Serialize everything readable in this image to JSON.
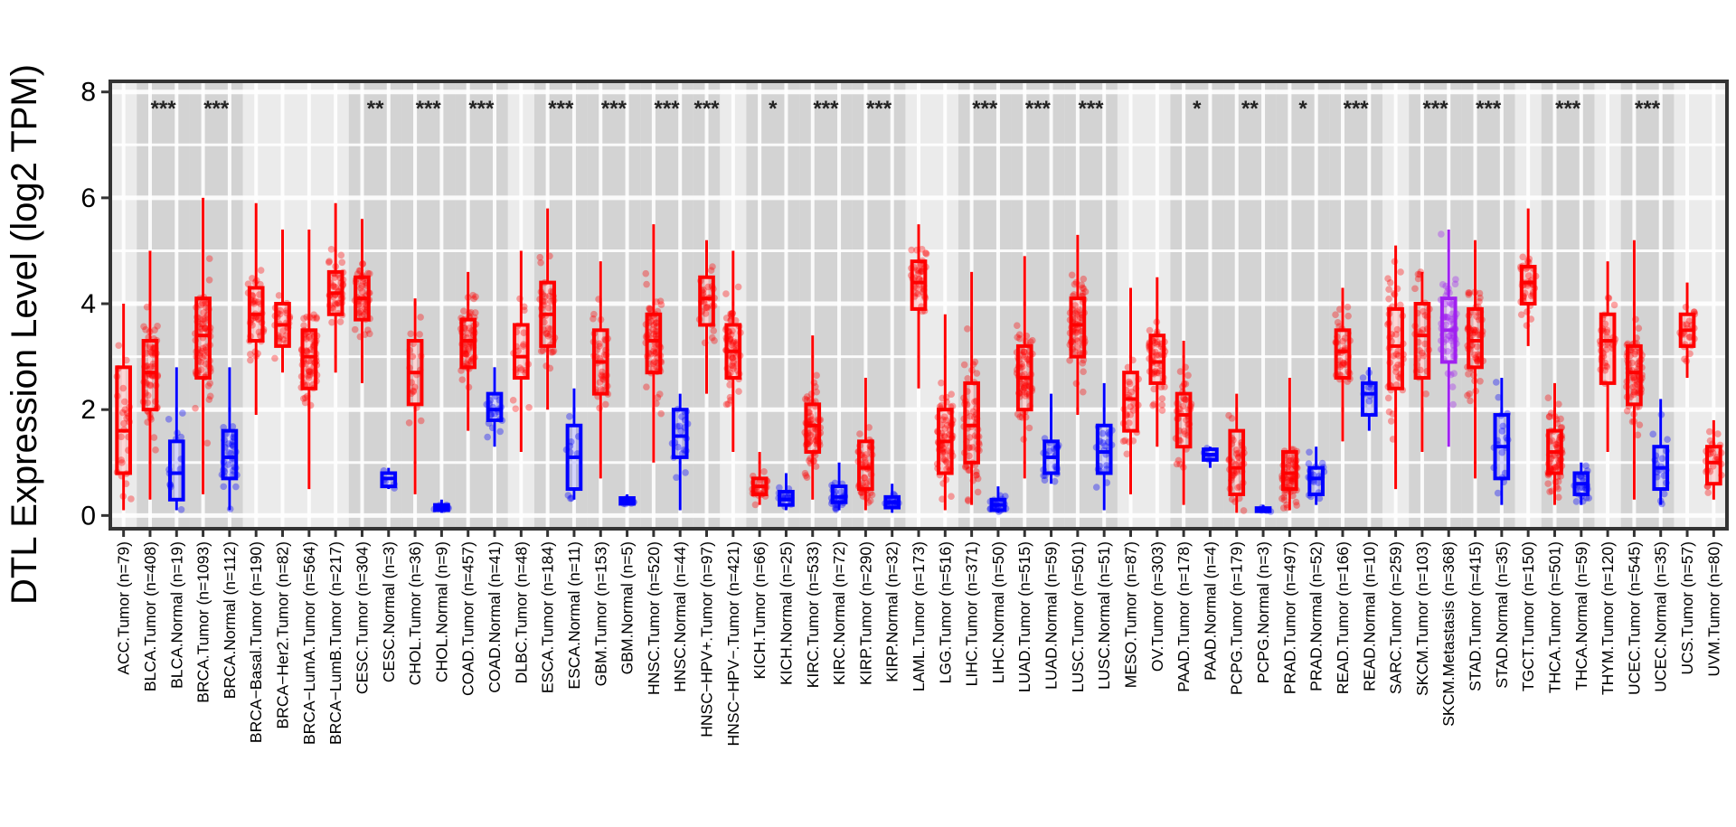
{
  "chart_data": {
    "type": "box",
    "ylabel": "DTL Expression Level (log2 TPM)",
    "xlabel": "",
    "title": "",
    "ylim": [
      -0.25,
      8.2
    ],
    "yticks": [
      0,
      2,
      4,
      6,
      8
    ],
    "grid": true,
    "colors": {
      "Tumor": "#ff0000",
      "Normal": "#0000ff",
      "Metastasis": "#a020f0",
      "shade": "#d3d3d3",
      "panel": "#ebebeb"
    },
    "categories": [
      "ACC.Tumor (n=79)",
      "BLCA.Tumor (n=408)",
      "BLCA.Normal (n=19)",
      "BRCA.Tumor (n=1093)",
      "BRCA.Normal (n=112)",
      "BRCA−Basal.Tumor (n=190)",
      "BRCA−Her2.Tumor (n=82)",
      "BRCA−LumA.Tumor (n=564)",
      "BRCA−LumB.Tumor (n=217)",
      "CESC.Tumor (n=304)",
      "CESC.Normal (n=3)",
      "CHOL.Tumor (n=36)",
      "CHOL.Normal (n=9)",
      "COAD.Tumor (n=457)",
      "COAD.Normal (n=41)",
      "DLBC.Tumor (n=48)",
      "ESCA.Tumor (n=184)",
      "ESCA.Normal (n=11)",
      "GBM.Tumor (n=153)",
      "GBM.Normal (n=5)",
      "HNSC.Tumor (n=520)",
      "HNSC.Normal (n=44)",
      "HNSC−HPV+.Tumor (n=97)",
      "HNSC−HPV−.Tumor (n=421)",
      "KICH.Tumor (n=66)",
      "KICH.Normal (n=25)",
      "KIRC.Tumor (n=533)",
      "KIRC.Normal (n=72)",
      "KIRP.Tumor (n=290)",
      "KIRP.Normal (n=32)",
      "LAML.Tumor (n=173)",
      "LGG.Tumor (n=516)",
      "LIHC.Tumor (n=371)",
      "LIHC.Normal (n=50)",
      "LUAD.Tumor (n=515)",
      "LUAD.Normal (n=59)",
      "LUSC.Tumor (n=501)",
      "LUSC.Normal (n=51)",
      "MESO.Tumor (n=87)",
      "OV.Tumor (n=303)",
      "PAAD.Tumor (n=178)",
      "PAAD.Normal (n=4)",
      "PCPG.Tumor (n=179)",
      "PCPG.Normal (n=3)",
      "PRAD.Tumor (n=497)",
      "PRAD.Normal (n=52)",
      "READ.Tumor (n=166)",
      "READ.Normal (n=10)",
      "SARC.Tumor (n=259)",
      "SKCM.Tumor (n=103)",
      "SKCM.Metastasis (n=368)",
      "STAD.Tumor (n=415)",
      "STAD.Normal (n=35)",
      "TGCT.Tumor (n=150)",
      "THCA.Tumor (n=501)",
      "THCA.Normal (n=59)",
      "THYM.Tumor (n=120)",
      "UCEC.Tumor (n=545)",
      "UCEC.Normal (n=35)",
      "UCS.Tumor (n=57)",
      "UVM.Tumor (n=80)"
    ],
    "groups": [
      "Tumor",
      "Tumor",
      "Normal",
      "Tumor",
      "Normal",
      "Tumor",
      "Tumor",
      "Tumor",
      "Tumor",
      "Tumor",
      "Normal",
      "Tumor",
      "Normal",
      "Tumor",
      "Normal",
      "Tumor",
      "Tumor",
      "Normal",
      "Tumor",
      "Normal",
      "Tumor",
      "Normal",
      "Tumor",
      "Tumor",
      "Tumor",
      "Normal",
      "Tumor",
      "Normal",
      "Tumor",
      "Normal",
      "Tumor",
      "Tumor",
      "Tumor",
      "Normal",
      "Tumor",
      "Normal",
      "Tumor",
      "Normal",
      "Tumor",
      "Tumor",
      "Tumor",
      "Normal",
      "Tumor",
      "Normal",
      "Tumor",
      "Normal",
      "Tumor",
      "Normal",
      "Tumor",
      "Tumor",
      "Metastasis",
      "Tumor",
      "Normal",
      "Tumor",
      "Tumor",
      "Normal",
      "Tumor",
      "Tumor",
      "Normal",
      "Tumor",
      "Tumor"
    ],
    "series": [
      {
        "stats": [
          [
            0.1,
            0.8,
            1.6,
            2.8,
            4.0
          ],
          [
            0.3,
            2.0,
            2.7,
            3.3,
            5.0
          ],
          [
            0.1,
            0.3,
            0.8,
            1.4,
            2.8
          ],
          [
            0.4,
            2.6,
            3.4,
            4.1,
            6.0
          ],
          [
            0.1,
            0.7,
            1.1,
            1.6,
            2.8
          ],
          [
            1.9,
            3.3,
            3.8,
            4.3,
            5.9
          ],
          [
            2.7,
            3.2,
            3.6,
            4.0,
            5.4
          ],
          [
            0.5,
            2.4,
            3.0,
            3.5,
            5.4
          ],
          [
            2.7,
            3.8,
            4.2,
            4.6,
            5.9
          ],
          [
            2.5,
            3.7,
            4.1,
            4.5,
            5.6
          ],
          [
            0.5,
            0.55,
            0.7,
            0.8,
            0.9
          ],
          [
            0.4,
            2.1,
            2.7,
            3.3,
            4.1
          ],
          [
            0.05,
            0.1,
            0.15,
            0.2,
            0.3
          ],
          [
            1.6,
            2.8,
            3.3,
            3.7,
            4.6
          ],
          [
            1.3,
            1.8,
            2.0,
            2.3,
            2.8
          ],
          [
            1.2,
            2.6,
            3.0,
            3.6,
            5.0
          ],
          [
            2.0,
            3.2,
            3.8,
            4.4,
            5.8
          ],
          [
            0.3,
            0.5,
            1.1,
            1.7,
            2.4
          ],
          [
            0.7,
            2.3,
            2.9,
            3.5,
            4.8
          ],
          [
            0.2,
            0.22,
            0.27,
            0.33,
            0.4
          ],
          [
            1.0,
            2.7,
            3.3,
            3.8,
            5.5
          ],
          [
            0.1,
            1.1,
            1.5,
            2.0,
            2.3
          ],
          [
            2.3,
            3.6,
            4.1,
            4.5,
            5.2
          ],
          [
            1.2,
            2.6,
            3.1,
            3.6,
            5.0
          ],
          [
            0.2,
            0.4,
            0.55,
            0.7,
            1.2
          ],
          [
            0.1,
            0.2,
            0.3,
            0.45,
            0.8
          ],
          [
            0.3,
            1.2,
            1.7,
            2.1,
            3.4
          ],
          [
            0.1,
            0.25,
            0.35,
            0.55,
            1.0
          ],
          [
            0.1,
            0.5,
            0.9,
            1.4,
            2.6
          ],
          [
            0.05,
            0.15,
            0.25,
            0.35,
            0.6
          ],
          [
            2.4,
            3.9,
            4.4,
            4.8,
            5.5
          ],
          [
            0.1,
            0.8,
            1.4,
            2.0,
            3.8
          ],
          [
            0.2,
            1.0,
            1.7,
            2.5,
            4.6
          ],
          [
            0.05,
            0.1,
            0.2,
            0.3,
            0.55
          ],
          [
            0.7,
            2.0,
            2.6,
            3.2,
            4.9
          ],
          [
            0.6,
            0.8,
            1.1,
            1.4,
            2.3
          ],
          [
            1.9,
            3.0,
            3.6,
            4.1,
            5.3
          ],
          [
            0.1,
            0.8,
            1.2,
            1.7,
            2.5
          ],
          [
            0.4,
            1.6,
            2.2,
            2.7,
            4.3
          ],
          [
            1.3,
            2.5,
            2.9,
            3.4,
            4.5
          ],
          [
            0.2,
            1.3,
            1.9,
            2.3,
            3.3
          ],
          [
            0.9,
            1.05,
            1.15,
            1.25,
            1.3
          ],
          [
            0.05,
            0.4,
            0.9,
            1.6,
            2.3
          ],
          [
            0.05,
            0.08,
            0.1,
            0.14,
            0.2
          ],
          [
            0.1,
            0.5,
            0.8,
            1.2,
            2.6
          ],
          [
            0.2,
            0.4,
            0.7,
            0.9,
            1.3
          ],
          [
            1.4,
            2.6,
            3.1,
            3.5,
            4.3
          ],
          [
            1.6,
            1.9,
            2.3,
            2.5,
            2.8
          ],
          [
            0.5,
            2.4,
            3.2,
            3.9,
            5.1
          ],
          [
            1.2,
            2.6,
            3.4,
            4.0,
            4.6
          ],
          [
            1.3,
            2.9,
            3.5,
            4.1,
            5.4
          ],
          [
            0.7,
            2.8,
            3.3,
            3.9,
            5.2
          ],
          [
            0.2,
            0.7,
            1.3,
            1.9,
            2.6
          ],
          [
            3.2,
            4.0,
            4.4,
            4.7,
            5.8
          ],
          [
            0.2,
            0.8,
            1.2,
            1.6,
            2.5
          ],
          [
            0.2,
            0.4,
            0.6,
            0.8,
            1.0
          ],
          [
            1.2,
            2.5,
            3.3,
            3.8,
            4.8
          ],
          [
            0.3,
            2.1,
            2.7,
            3.2,
            5.2
          ],
          [
            0.2,
            0.5,
            0.9,
            1.3,
            2.2
          ],
          [
            2.6,
            3.2,
            3.5,
            3.8,
            4.4
          ],
          [
            0.3,
            0.6,
            1.0,
            1.3,
            1.8
          ]
        ]
      }
    ],
    "significance": [
      {
        "pair": [
          1,
          2
        ],
        "label": "***"
      },
      {
        "pair": [
          3,
          4
        ],
        "label": "***"
      },
      {
        "pair": [
          9,
          10
        ],
        "label": "**"
      },
      {
        "pair": [
          11,
          12
        ],
        "label": "***"
      },
      {
        "pair": [
          13,
          14
        ],
        "label": "***"
      },
      {
        "pair": [
          16,
          17
        ],
        "label": "***"
      },
      {
        "pair": [
          18,
          19
        ],
        "label": "***"
      },
      {
        "pair": [
          20,
          21
        ],
        "label": "***"
      },
      {
        "pair": [
          22,
          22
        ],
        "label": "***"
      },
      {
        "pair": [
          24,
          25
        ],
        "label": "*"
      },
      {
        "pair": [
          26,
          27
        ],
        "label": "***"
      },
      {
        "pair": [
          28,
          29
        ],
        "label": "***"
      },
      {
        "pair": [
          32,
          33
        ],
        "label": "***"
      },
      {
        "pair": [
          34,
          35
        ],
        "label": "***"
      },
      {
        "pair": [
          36,
          37
        ],
        "label": "***"
      },
      {
        "pair": [
          40,
          41
        ],
        "label": "*"
      },
      {
        "pair": [
          42,
          43
        ],
        "label": "**"
      },
      {
        "pair": [
          44,
          45
        ],
        "label": "*"
      },
      {
        "pair": [
          46,
          47
        ],
        "label": "***"
      },
      {
        "pair": [
          49,
          50
        ],
        "label": "***"
      },
      {
        "pair": [
          51,
          52
        ],
        "label": "***"
      },
      {
        "pair": [
          54,
          55
        ],
        "label": "***"
      },
      {
        "pair": [
          57,
          58
        ],
        "label": "***"
      }
    ]
  }
}
